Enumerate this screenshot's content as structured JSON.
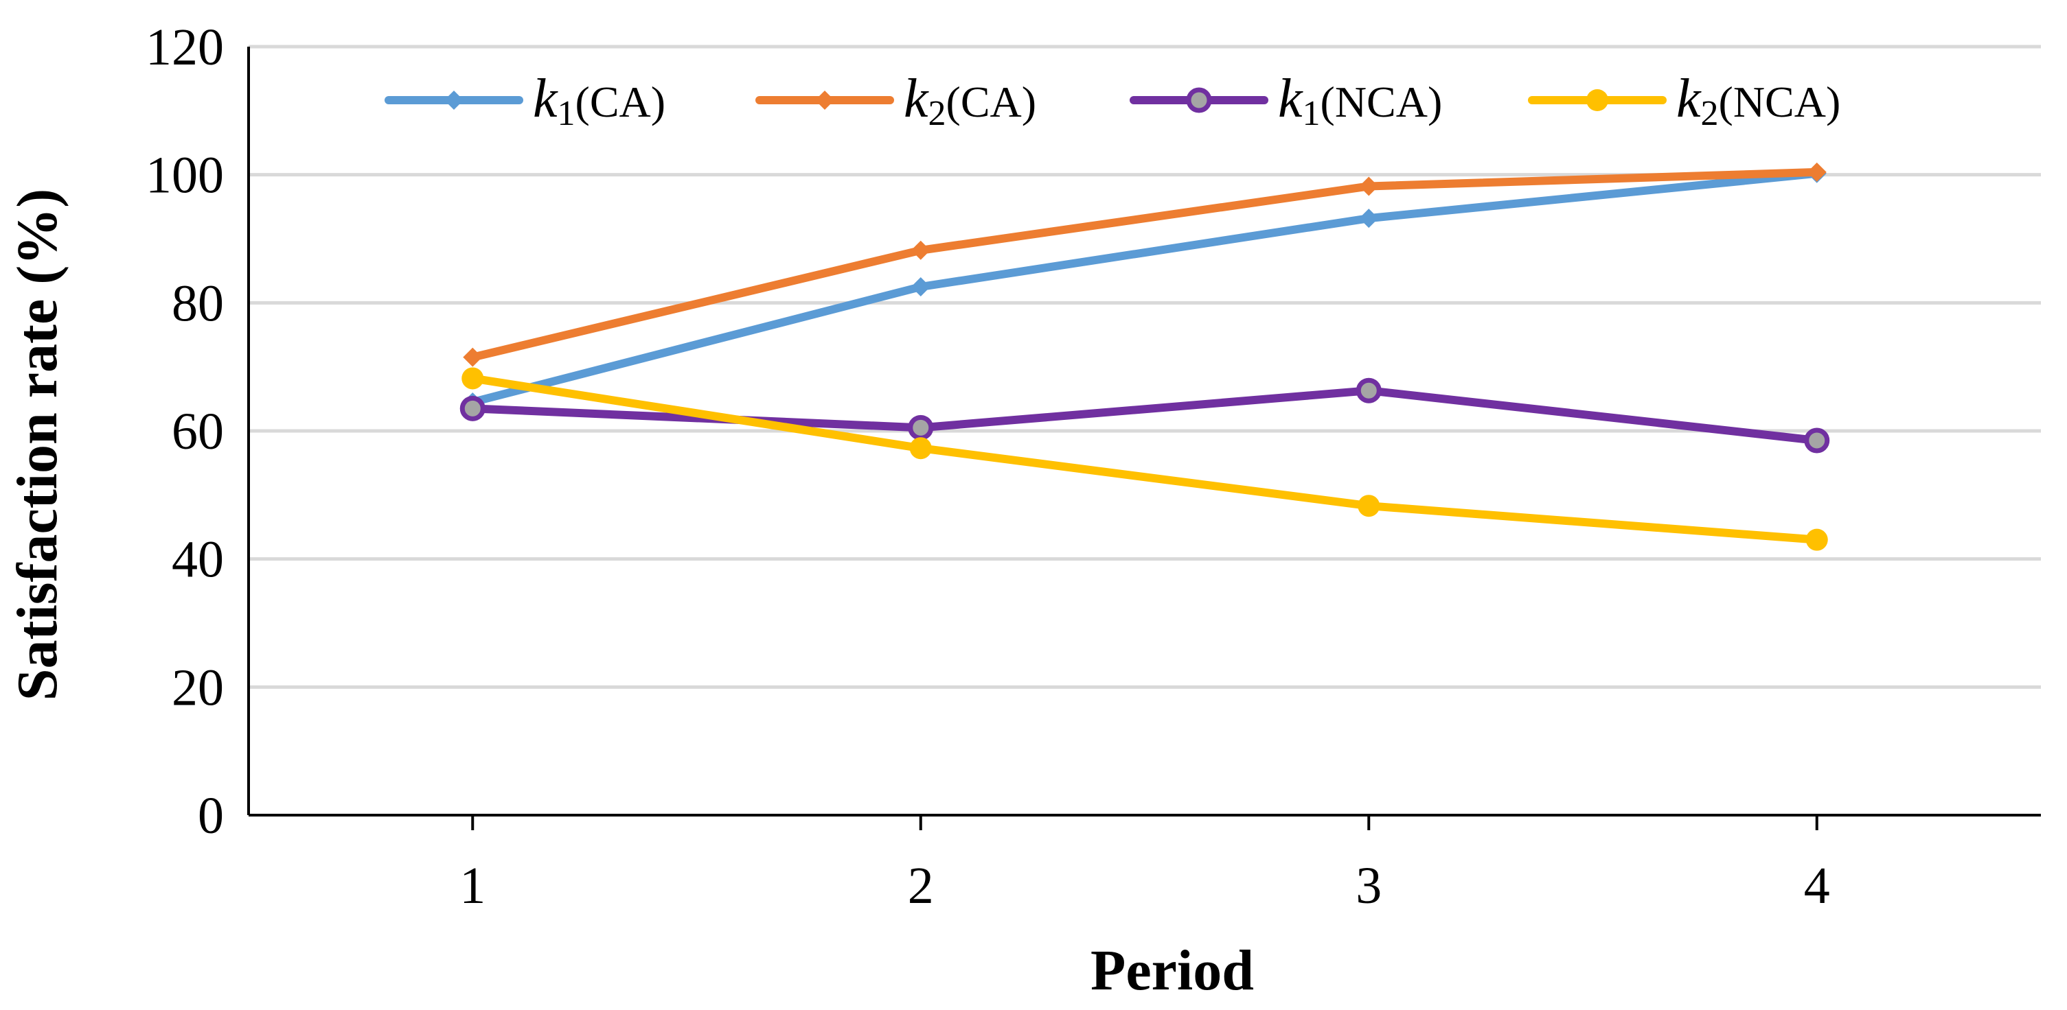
{
  "chart_data": {
    "type": "line",
    "title": "",
    "xlabel": "Period",
    "ylabel": "Satisfaction rate (%)",
    "x": [
      1,
      2,
      3,
      4
    ],
    "ylim": [
      0,
      120
    ],
    "yticks": [
      0,
      20,
      40,
      60,
      80,
      100,
      120
    ],
    "grid": true,
    "legend_position": "top",
    "series": [
      {
        "name": "k1(CA)",
        "var": "k",
        "sub": "1",
        "suffix": "(CA)",
        "color": "#5b9bd5",
        "marker": "diamond",
        "values": [
          64.5,
          82.5,
          93.2,
          100.2
        ]
      },
      {
        "name": "k2(CA)",
        "var": "k",
        "sub": "2",
        "suffix": "(CA)",
        "color": "#ed7d31",
        "marker": "diamond",
        "values": [
          71.5,
          88.2,
          98.2,
          100.4
        ]
      },
      {
        "name": "k1(NCA)",
        "var": "k",
        "sub": "1",
        "suffix": "(NCA)",
        "color": "#7030a0",
        "marker": "circle-gray",
        "values": [
          63.5,
          60.5,
          66.3,
          58.5
        ]
      },
      {
        "name": "k2(NCA)",
        "var": "k",
        "sub": "2",
        "suffix": "(NCA)",
        "color": "#ffc000",
        "marker": "circle",
        "values": [
          68.2,
          57.3,
          48.3,
          43.0
        ]
      }
    ]
  }
}
